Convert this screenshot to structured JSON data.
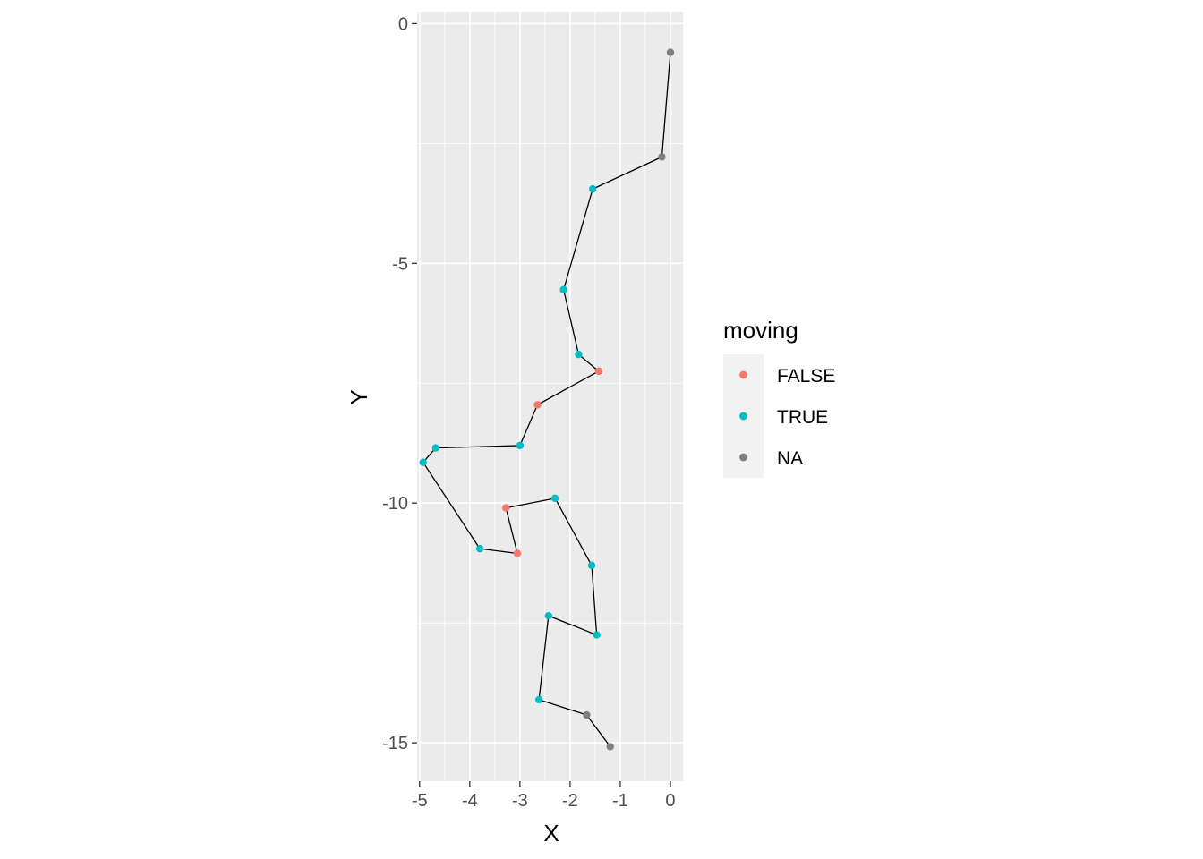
{
  "chart_data": {
    "type": "scatter",
    "connected": true,
    "title": "",
    "xlabel": "X",
    "ylabel": "Y",
    "xlim": [
      -5.05,
      0.25
    ],
    "ylim": [
      -15.8,
      0.25
    ],
    "x_ticks": [
      -5,
      -4,
      -3,
      -2,
      -1,
      0
    ],
    "x_tick_labels": [
      "-5",
      "-4",
      "-3",
      "-2",
      "-1",
      "0"
    ],
    "y_ticks": [
      0,
      -5,
      -10,
      -15
    ],
    "y_tick_labels": [
      "0",
      "-5",
      "-10",
      "-15"
    ],
    "grid": true,
    "legend": {
      "title": "moving",
      "position": "right",
      "entries": [
        {
          "key": "FALSE",
          "label": "FALSE",
          "color": "#F8766D"
        },
        {
          "key": "TRUE",
          "label": "TRUE",
          "color": "#00BFC4"
        },
        {
          "key": "NA",
          "label": "NA",
          "color": "#7F7F7F"
        }
      ]
    },
    "line_color": "#000000",
    "panel_background": "#EBEBEB",
    "points": [
      {
        "x": 0.0,
        "y": -0.6,
        "moving": "NA"
      },
      {
        "x": -0.17,
        "y": -2.78,
        "moving": "NA"
      },
      {
        "x": -1.55,
        "y": -3.45,
        "moving": "TRUE"
      },
      {
        "x": -2.13,
        "y": -5.55,
        "moving": "TRUE"
      },
      {
        "x": -1.83,
        "y": -6.9,
        "moving": "TRUE"
      },
      {
        "x": -1.43,
        "y": -7.25,
        "moving": "FALSE"
      },
      {
        "x": -2.65,
        "y": -7.95,
        "moving": "FALSE"
      },
      {
        "x": -3.0,
        "y": -8.8,
        "moving": "TRUE"
      },
      {
        "x": -4.68,
        "y": -8.85,
        "moving": "TRUE"
      },
      {
        "x": -4.93,
        "y": -9.15,
        "moving": "TRUE"
      },
      {
        "x": -3.8,
        "y": -10.95,
        "moving": "TRUE"
      },
      {
        "x": -3.05,
        "y": -11.05,
        "moving": "FALSE"
      },
      {
        "x": -3.28,
        "y": -10.1,
        "moving": "FALSE"
      },
      {
        "x": -2.3,
        "y": -9.9,
        "moving": "TRUE"
      },
      {
        "x": -1.57,
        "y": -11.3,
        "moving": "TRUE"
      },
      {
        "x": -1.47,
        "y": -12.75,
        "moving": "TRUE"
      },
      {
        "x": -2.43,
        "y": -12.35,
        "moving": "TRUE"
      },
      {
        "x": -2.62,
        "y": -14.1,
        "moving": "TRUE"
      },
      {
        "x": -1.67,
        "y": -14.42,
        "moving": "NA"
      },
      {
        "x": -1.2,
        "y": -15.08,
        "moving": "NA"
      }
    ]
  }
}
